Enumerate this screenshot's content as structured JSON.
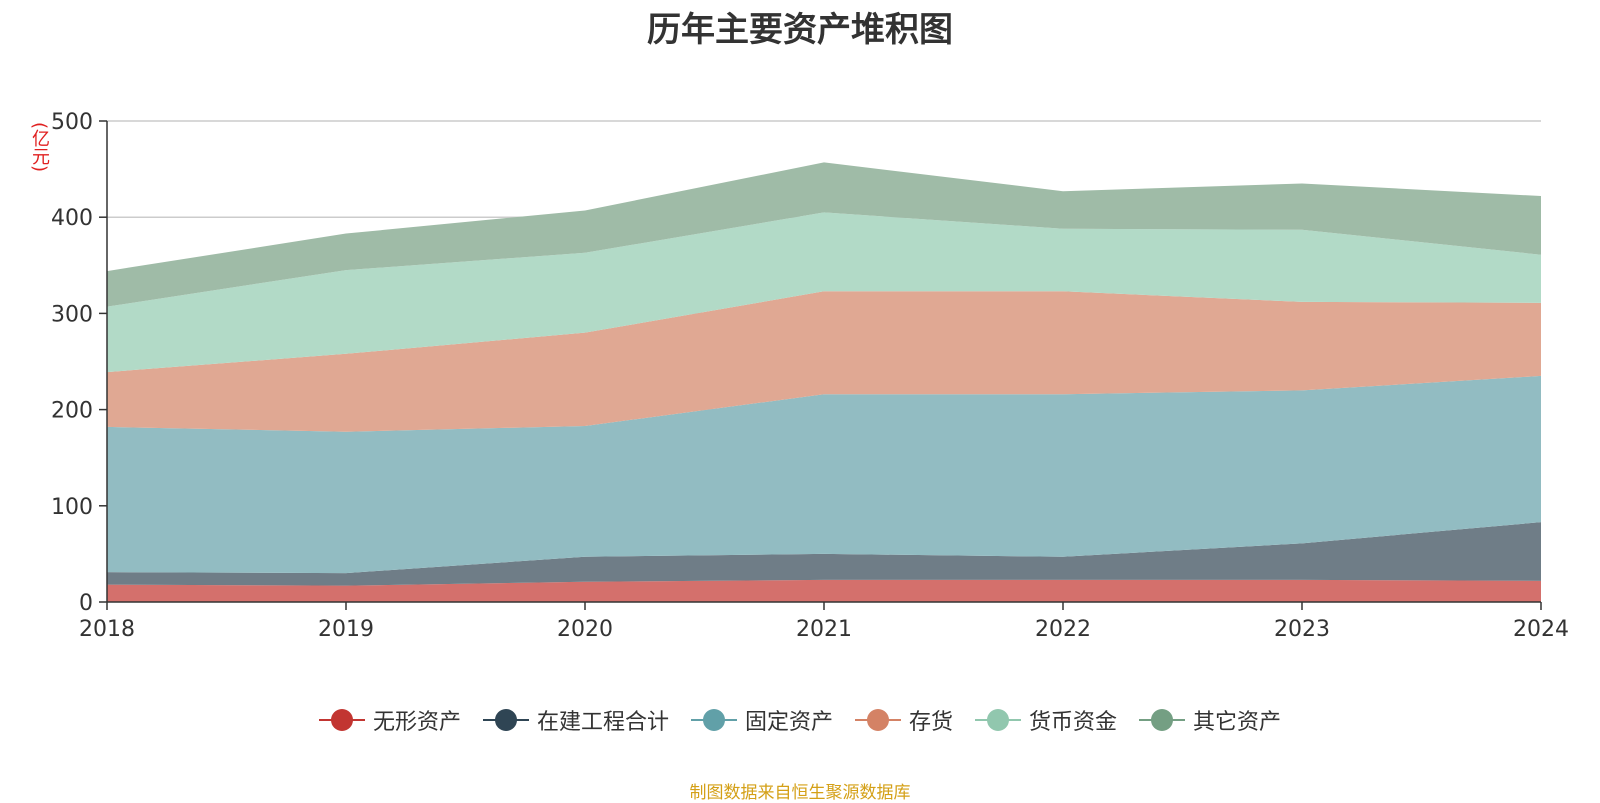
{
  "chart_data": {
    "type": "area",
    "stacked": true,
    "title": "历年主要资产堆积图",
    "unit_label": "(亿元)",
    "x": [
      "2018",
      "2019",
      "2020",
      "2021",
      "2022",
      "2023",
      "2024"
    ],
    "ylim": [
      0,
      500
    ],
    "yticks": [
      "0",
      "100",
      "200",
      "300",
      "400",
      "500"
    ],
    "grid": true,
    "legend_position": "bottom",
    "series": [
      {
        "name": "无形资产",
        "color": "#c23531",
        "fill": "#d4706c",
        "values": [
          18,
          17,
          21,
          23,
          23,
          23,
          22
        ]
      },
      {
        "name": "在建工程合计",
        "color": "#2f4554",
        "fill": "#6f7d87",
        "values": [
          13,
          13,
          26,
          27,
          24,
          38,
          61
        ]
      },
      {
        "name": "固定资产",
        "color": "#61a0a8",
        "fill": "#92bcc2",
        "values": [
          151,
          147,
          136,
          166,
          169,
          159,
          152
        ]
      },
      {
        "name": "存货",
        "color": "#d48265",
        "fill": "#e0a893",
        "values": [
          57,
          81,
          97,
          107,
          107,
          92,
          76
        ]
      },
      {
        "name": "货币资金",
        "color": "#91c7ae",
        "fill": "#b2dac7",
        "values": [
          68,
          87,
          83,
          82,
          65,
          75,
          50
        ]
      },
      {
        "name": "其它资产",
        "color": "#749f83",
        "fill": "#9fbba7",
        "values": [
          37,
          38,
          44,
          52,
          39,
          48,
          61
        ]
      }
    ]
  },
  "source_note": "制图数据来自恒生聚源数据库"
}
